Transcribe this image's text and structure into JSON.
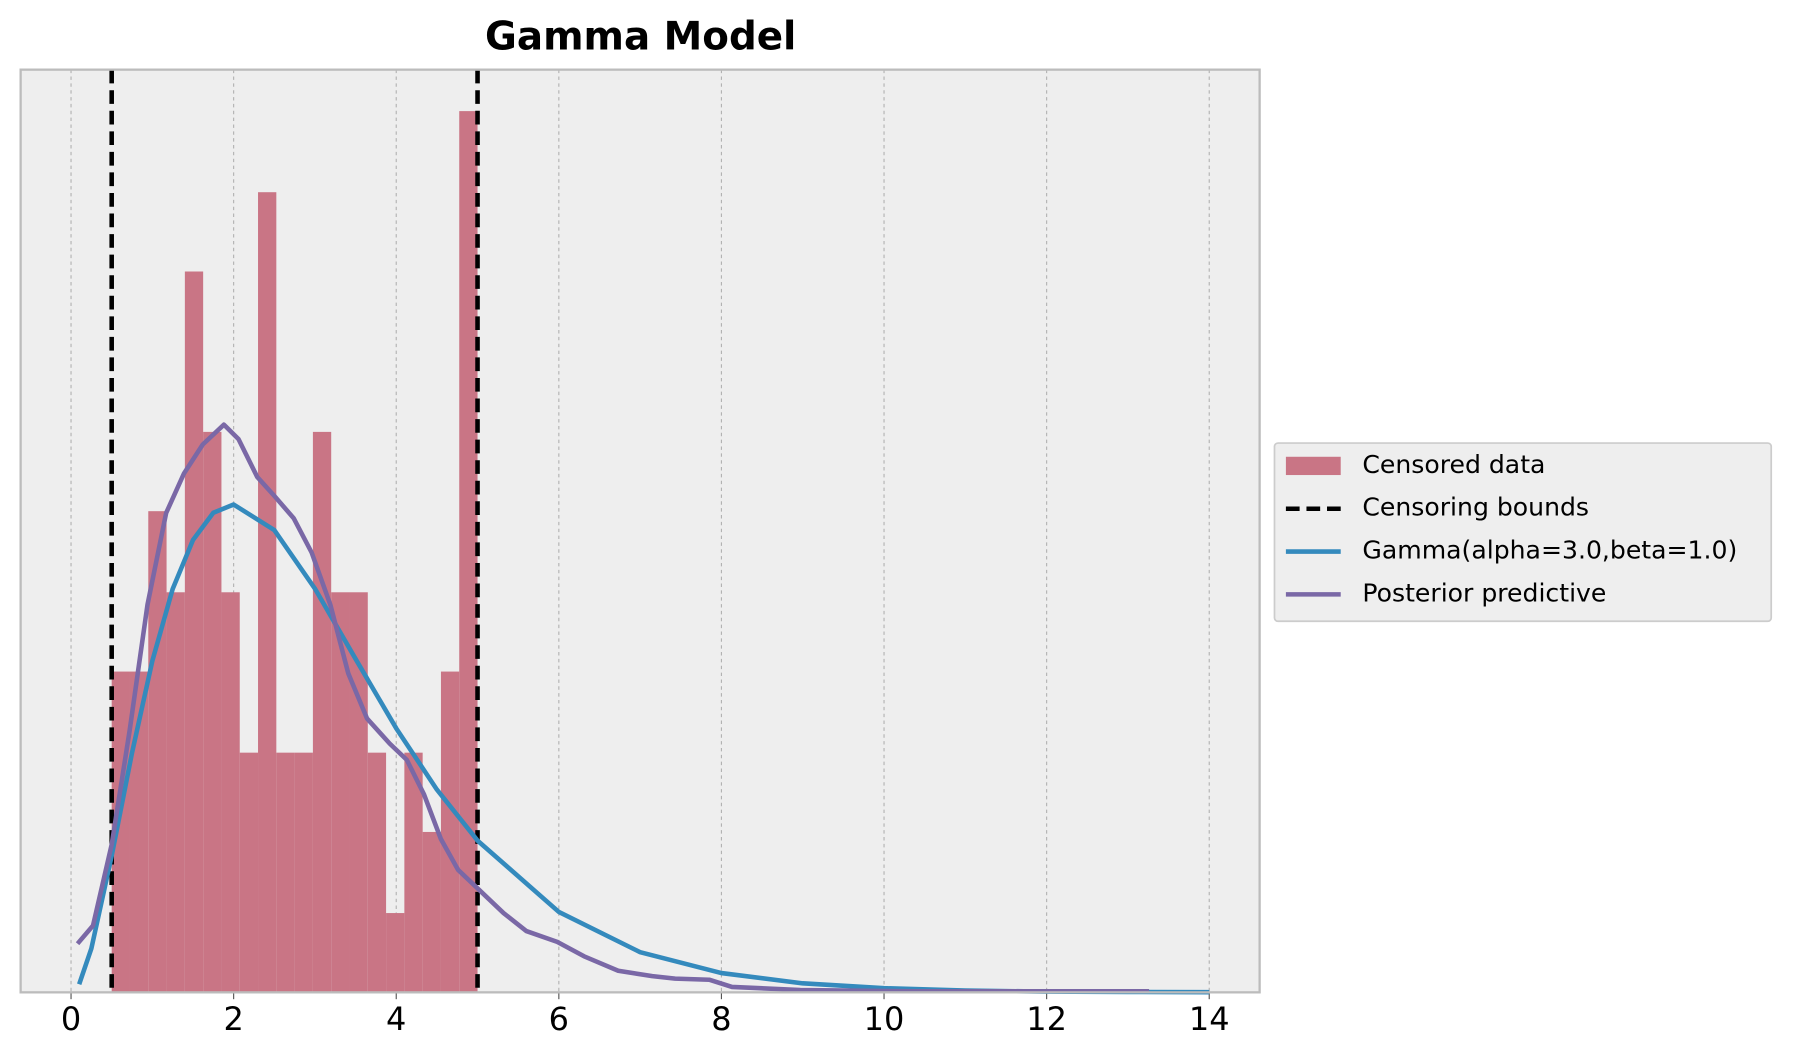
{
  "chart_data": {
    "type": "histogram",
    "title": "Gamma Model",
    "bins": [
      0.5,
      0.725,
      0.95,
      1.175,
      1.4,
      1.625,
      1.85,
      2.075,
      2.3,
      2.525,
      2.75,
      2.975,
      3.2,
      3.425,
      3.65,
      3.875,
      4.1,
      4.325,
      4.55,
      4.775,
      5.0
    ],
    "values": [
      0.178,
      0.178,
      0.267,
      0.222,
      0.4,
      0.311,
      0.222,
      0.133,
      0.444,
      0.133,
      0.133,
      0.311,
      0.222,
      0.222,
      0.133,
      0.044,
      0.133,
      0.089,
      0.178,
      0.489
    ],
    "color": "#c97585",
    "label": "Censored data",
    "vlines": {
      "name": "Censoring bounds",
      "x": [
        0.5,
        5.0
      ],
      "color": "#000000"
    },
    "series": [
      {
        "name": "Gamma(alpha=3.0,beta=1.0)",
        "color": "#348abd",
        "x": [
          0.1,
          0.25,
          0.5,
          0.75,
          1,
          1.25,
          1.5,
          1.75,
          2,
          2.5,
          3,
          3.5,
          4,
          4.5,
          5,
          6,
          7,
          8,
          9,
          10,
          11,
          12,
          13,
          14
        ],
        "values": [
          0.0045,
          0.0243,
          0.0758,
          0.1329,
          0.1839,
          0.2238,
          0.251,
          0.2661,
          0.2707,
          0.2565,
          0.224,
          0.185,
          0.1465,
          0.1125,
          0.0842,
          0.0446,
          0.0223,
          0.0107,
          0.005,
          0.0023,
          0.001,
          0.0004,
          0.0002,
          0.0001
        ]
      },
      {
        "name": "Posterior predictive",
        "color": "#7a68a6",
        "x": [
          0.08,
          0.27,
          0.5,
          0.72,
          0.94,
          1.17,
          1.39,
          1.62,
          1.88,
          2.06,
          2.29,
          2.51,
          2.74,
          2.96,
          3.19,
          3.41,
          3.64,
          3.92,
          4.13,
          4.34,
          4.55,
          4.76,
          5.04,
          5.32,
          5.6,
          5.98,
          6.31,
          6.73,
          7.15,
          7.43,
          7.85,
          8.13,
          8.97,
          10.38,
          13.26
        ],
        "values": [
          0.027,
          0.037,
          0.082,
          0.145,
          0.215,
          0.266,
          0.288,
          0.304,
          0.315,
          0.307,
          0.286,
          0.275,
          0.263,
          0.244,
          0.215,
          0.177,
          0.152,
          0.138,
          0.129,
          0.11,
          0.085,
          0.068,
          0.056,
          0.044,
          0.034,
          0.028,
          0.02,
          0.012,
          0.009,
          0.0076,
          0.007,
          0.003,
          0.0013,
          0.0006,
          0.0006
        ]
      }
    ],
    "xlim": [
      -0.62,
      14.62
    ],
    "ylim": [
      0,
      0.512
    ],
    "xticks": [
      0,
      2,
      4,
      6,
      8,
      10,
      12,
      14
    ],
    "grid": true,
    "legend": "right"
  }
}
